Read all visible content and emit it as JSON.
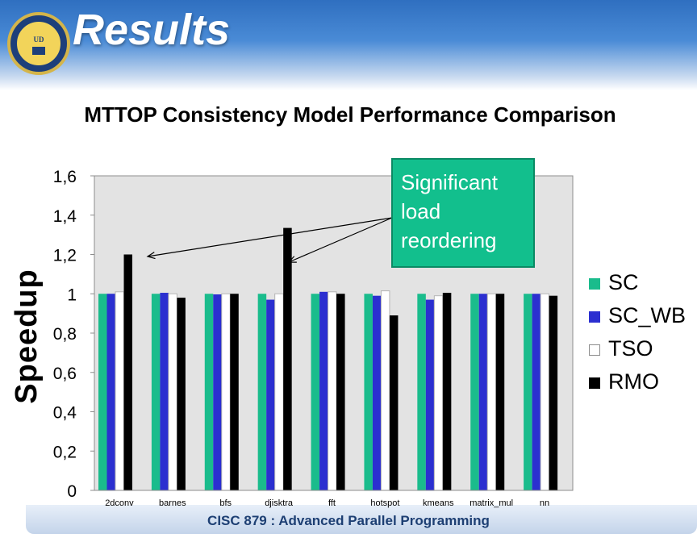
{
  "slide": {
    "title": "Results",
    "footer": "CISC 879 : Advanced Parallel Programming",
    "seal_text": "UNIVERSITY of DELAWARE"
  },
  "callout": {
    "text": "Significant load reordering"
  },
  "chart_data": {
    "type": "bar",
    "title": "MTTOP Consistency Model Performance Comparison",
    "xlabel": "",
    "ylabel": "Speedup",
    "ylim": [
      0,
      1.6
    ],
    "yticks": [
      "0",
      "0,2",
      "0,4",
      "0,6",
      "0,8",
      "1",
      "1,2",
      "1,4",
      "1,6"
    ],
    "grid": false,
    "legend_position": "right",
    "categories": [
      "2dconv",
      "barnes",
      "bfs",
      "djisktra",
      "fft",
      "hotspot",
      "kmeans",
      "matrix_mul",
      "nn"
    ],
    "series": [
      {
        "name": "SC",
        "color": "#1abc8c",
        "values": [
          1.0,
          1.0,
          1.0,
          1.0,
          1.0,
          1.0,
          1.0,
          1.0,
          1.0
        ]
      },
      {
        "name": "SC_WB",
        "color": "#2b2fd0",
        "values": [
          1.0,
          1.005,
          0.997,
          0.97,
          1.01,
          0.99,
          0.97,
          1.0,
          1.0
        ]
      },
      {
        "name": "TSO",
        "color": "#ffffff",
        "values": [
          1.01,
          1.0,
          1.0,
          1.0,
          1.01,
          1.015,
          0.99,
          1.0,
          1.0
        ]
      },
      {
        "name": "RMO",
        "color": "#000000",
        "values": [
          1.2,
          0.98,
          1.0,
          1.335,
          1.0,
          0.89,
          1.005,
          1.0,
          0.99
        ]
      }
    ]
  }
}
